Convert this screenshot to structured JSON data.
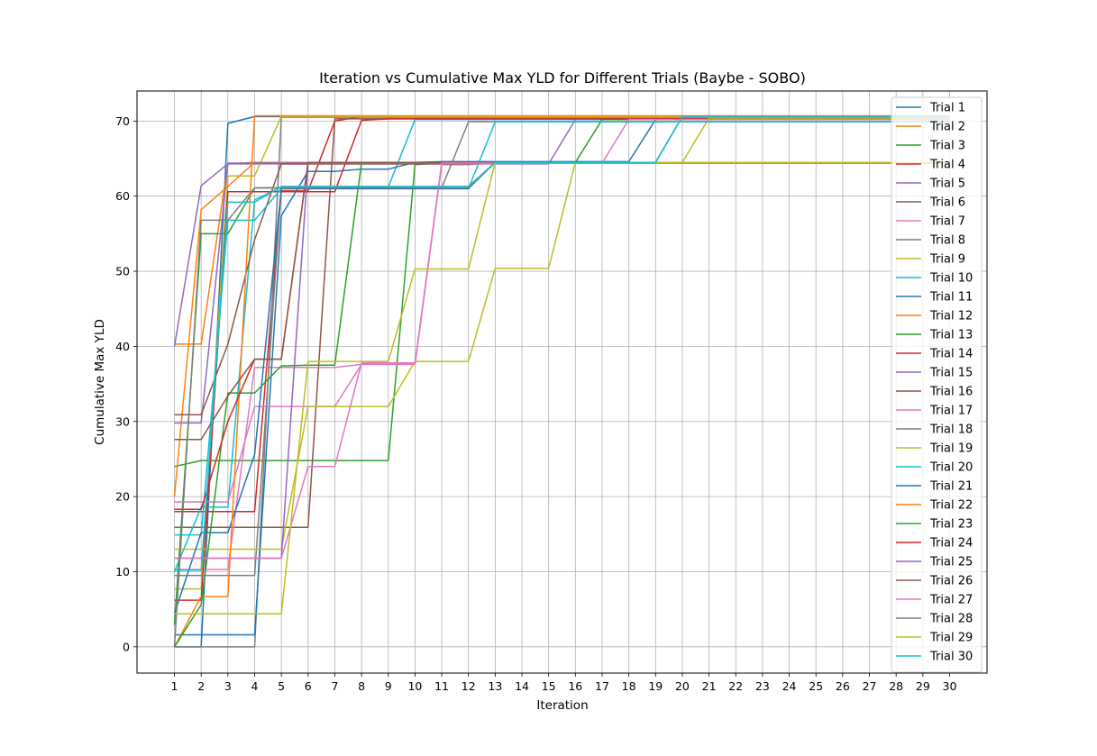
{
  "chart_data": {
    "type": "line",
    "title": "Iteration vs Cumulative Max YLD for Different Trials (Baybe - SOBO)",
    "xlabel": "Iteration",
    "ylabel": "Cumulative Max YLD",
    "xlim": [
      -0.4,
      31.4
    ],
    "ylim": [
      -3.5,
      74
    ],
    "xticks": [
      1,
      2,
      3,
      4,
      5,
      6,
      7,
      8,
      9,
      10,
      11,
      12,
      13,
      14,
      15,
      16,
      17,
      18,
      19,
      20,
      21,
      22,
      23,
      24,
      25,
      26,
      27,
      28,
      29,
      30
    ],
    "yticks": [
      0,
      10,
      20,
      30,
      40,
      50,
      60,
      70
    ],
    "grid": true,
    "legend_position": "upper right",
    "x": [
      1,
      2,
      3,
      4,
      5,
      6,
      7,
      8,
      9,
      10,
      11,
      12,
      13,
      14,
      15,
      16,
      17,
      18,
      19,
      20,
      21,
      22,
      23,
      24,
      25,
      26,
      27,
      28,
      29,
      30
    ],
    "series": [
      {
        "name": "Trial 1",
        "color": "#1f77b4",
        "values": [
          0,
          0,
          69.7,
          70.6,
          70.6,
          70.6,
          70.6,
          70.6,
          70.6,
          70.6,
          70.6,
          70.6,
          70.6,
          70.6,
          70.6,
          70.6,
          70.6,
          70.6,
          70.6,
          70.6,
          70.6,
          70.6,
          70.6,
          70.6,
          70.6,
          70.6,
          70.6,
          70.6,
          70.6,
          70.6
        ]
      },
      {
        "name": "Trial 2",
        "color": "#ff7f0e",
        "values": [
          40.3,
          40.3,
          64.3,
          64.5,
          64.5,
          64.5,
          64.5,
          64.5,
          64.5,
          64.5,
          64.5,
          64.5,
          64.5,
          64.5,
          64.5,
          64.5,
          64.5,
          64.5,
          64.5,
          64.5,
          64.5,
          64.5,
          64.5,
          64.5,
          64.5,
          64.5,
          64.5,
          64.5,
          64.5,
          64.5
        ]
      },
      {
        "name": "Trial 3",
        "color": "#2ca02c",
        "values": [
          24,
          24.8,
          24.8,
          24.8,
          24.8,
          24.8,
          24.8,
          24.8,
          24.8,
          64.2,
          64.4,
          64.5,
          64.5,
          64.5,
          64.5,
          64.5,
          64.5,
          64.5,
          64.5,
          64.5,
          64.5,
          64.5,
          64.5,
          64.5,
          64.5,
          64.5,
          64.5,
          64.5,
          64.5,
          64.5
        ]
      },
      {
        "name": "Trial 4",
        "color": "#d62728",
        "values": [
          18,
          18,
          18,
          18,
          60.7,
          60.7,
          70,
          70.6,
          70.6,
          70.6,
          70.6,
          70.6,
          70.6,
          70.6,
          70.6,
          70.6,
          70.6,
          70.6,
          70.6,
          70.6,
          70.6,
          70.6,
          70.6,
          70.6,
          70.6,
          70.6,
          70.6,
          70.6,
          70.6,
          70.6
        ]
      },
      {
        "name": "Trial 5",
        "color": "#9467bd",
        "values": [
          40,
          61.4,
          64.3,
          64.3,
          64.3,
          64.3,
          64.3,
          64.3,
          64.3,
          64.3,
          64.3,
          64.3,
          64.3,
          64.3,
          64.3,
          70.2,
          70.2,
          70.2,
          70.2,
          70.2,
          70.2,
          70.2,
          70.2,
          70.2,
          70.2,
          70.2,
          70.2,
          70.2,
          70.2,
          70.2
        ]
      },
      {
        "name": "Trial 6",
        "color": "#8c564b",
        "values": [
          15.9,
          15.9,
          15.9,
          15.9,
          15.9,
          15.9,
          70.3,
          70.3,
          70.3,
          70.3,
          70.3,
          70.3,
          70.3,
          70.3,
          70.3,
          70.3,
          70.3,
          70.3,
          70.3,
          70.3,
          70.3,
          70.3,
          70.3,
          70.3,
          70.3,
          70.3,
          70.3,
          70.3,
          70.3,
          70.3
        ]
      },
      {
        "name": "Trial 7",
        "color": "#e377c2",
        "values": [
          10.3,
          10.3,
          10.3,
          37.2,
          37.2,
          37.2,
          37.2,
          37.6,
          37.6,
          37.6,
          64.2,
          64.2,
          64.4,
          64.4,
          64.4,
          64.4,
          64.4,
          64.4,
          64.4,
          64.4,
          64.4,
          64.4,
          64.4,
          64.4,
          64.4,
          64.4,
          64.4,
          64.4,
          64.4,
          64.4
        ]
      },
      {
        "name": "Trial 8",
        "color": "#7f7f7f",
        "values": [
          0,
          0,
          0,
          0,
          70.5,
          70.5,
          70.5,
          70.5,
          70.5,
          70.5,
          70.5,
          70.5,
          70.5,
          70.5,
          70.5,
          70.5,
          70.5,
          70.5,
          70.5,
          70.5,
          70.5,
          70.5,
          70.5,
          70.5,
          70.5,
          70.5,
          70.5,
          70.5,
          70.5,
          70.5
        ]
      },
      {
        "name": "Trial 9",
        "color": "#bcbd22",
        "values": [
          7.7,
          7.7,
          62.7,
          62.7,
          70.6,
          70.6,
          70.6,
          70.6,
          70.6,
          70.6,
          70.6,
          70.6,
          70.6,
          70.6,
          70.6,
          70.6,
          70.6,
          70.6,
          70.6,
          70.6,
          70.6,
          70.6,
          70.6,
          70.6,
          70.6,
          70.6,
          70.6,
          70.6,
          70.6,
          70.6
        ]
      },
      {
        "name": "Trial 10",
        "color": "#17becf",
        "values": [
          10,
          18.6,
          18.6,
          59.5,
          61.2,
          61.2,
          61.2,
          61.2,
          61.2,
          70.2,
          70.2,
          70.2,
          70.2,
          70.2,
          70.2,
          70.2,
          70.2,
          70.2,
          70.2,
          70.2,
          70.2,
          70.2,
          70.2,
          70.2,
          70.2,
          70.2,
          70.2,
          70.2,
          70.2,
          70.2
        ]
      },
      {
        "name": "Trial 11",
        "color": "#1f77b4",
        "values": [
          1.6,
          1.6,
          1.6,
          1.6,
          57.4,
          63.3,
          63.3,
          63.6,
          63.6,
          64.5,
          64.6,
          64.6,
          64.6,
          64.6,
          64.6,
          64.6,
          64.6,
          64.6,
          70.2,
          70.2,
          70.2,
          70.2,
          70.2,
          70.2,
          70.2,
          70.2,
          70.2,
          70.2,
          70.2,
          70.2
        ]
      },
      {
        "name": "Trial 12",
        "color": "#ff7f0e",
        "values": [
          20,
          58.2,
          61.3,
          64.5,
          64.5,
          64.5,
          64.5,
          64.5,
          64.5,
          64.5,
          64.5,
          64.5,
          64.5,
          64.5,
          64.5,
          64.5,
          64.5,
          64.5,
          64.5,
          64.5,
          64.5,
          64.5,
          64.5,
          64.5,
          64.5,
          64.5,
          64.5,
          64.5,
          64.5,
          64.5
        ]
      },
      {
        "name": "Trial 13",
        "color": "#2ca02c",
        "values": [
          2.9,
          55,
          55,
          61.1,
          61.1,
          61.1,
          61.1,
          61.1,
          61.1,
          61.1,
          61.1,
          61.1,
          64.5,
          64.5,
          64.5,
          64.5,
          70.2,
          70.2,
          70.2,
          70.2,
          70.2,
          70.2,
          70.2,
          70.2,
          70.2,
          70.2,
          70.2,
          70.2,
          70.2,
          70.2
        ]
      },
      {
        "name": "Trial 14",
        "color": "#d62728",
        "values": [
          6.2,
          6.2,
          60.6,
          60.6,
          60.6,
          60.6,
          60.6,
          70.1,
          70.3,
          70.3,
          70.3,
          70.3,
          70.3,
          70.3,
          70.3,
          70.3,
          70.3,
          70.3,
          70.3,
          70.3,
          70.3,
          70.3,
          70.3,
          70.3,
          70.3,
          70.3,
          70.3,
          70.3,
          70.3,
          70.3
        ]
      },
      {
        "name": "Trial 15",
        "color": "#9467bd",
        "values": [
          29.8,
          29.8,
          64.4,
          64.4,
          64.4,
          64.4,
          64.4,
          64.4,
          64.4,
          64.4,
          64.4,
          64.4,
          64.4,
          64.4,
          64.4,
          64.4,
          64.4,
          64.4,
          64.4,
          64.4,
          64.4,
          64.4,
          64.4,
          64.4,
          64.4,
          64.4,
          64.4,
          64.4,
          64.4,
          64.4
        ]
      },
      {
        "name": "Trial 16",
        "color": "#8c564b",
        "values": [
          30.9,
          30.9,
          40.3,
          54.2,
          64.3,
          64.3,
          64.3,
          64.3,
          64.3,
          64.3,
          64.3,
          64.3,
          64.5,
          64.5,
          64.5,
          64.5,
          64.5,
          64.5,
          64.5,
          64.5,
          64.5,
          64.5,
          64.5,
          64.5,
          64.5,
          64.5,
          64.5,
          64.5,
          64.5,
          64.5
        ]
      },
      {
        "name": "Trial 17",
        "color": "#e377c2",
        "values": [
          19.3,
          19.3,
          19.3,
          32,
          32,
          32,
          32,
          37.6,
          37.6,
          37.6,
          64.4,
          64.4,
          64.4,
          64.4,
          64.4,
          64.4,
          64.4,
          70.2,
          70.2,
          70.2,
          70.2,
          70.2,
          70.2,
          70.2,
          70.2,
          70.2,
          70.2,
          70.2,
          70.2,
          70.2
        ]
      },
      {
        "name": "Trial 18",
        "color": "#7f7f7f",
        "values": [
          9.5,
          9.5,
          9.5,
          9.5,
          61.1,
          61.1,
          61.1,
          61.1,
          61.1,
          61.1,
          61.1,
          69.9,
          69.9,
          69.9,
          69.9,
          69.9,
          69.9,
          69.9,
          69.9,
          69.9,
          69.9,
          69.9,
          69.9,
          69.9,
          69.9,
          69.9,
          69.9,
          69.9,
          69.9,
          69.9
        ]
      },
      {
        "name": "Trial 19",
        "color": "#bcbd22",
        "values": [
          13,
          13,
          13,
          13,
          13,
          32,
          32,
          32,
          32,
          38,
          38,
          38,
          50.4,
          50.4,
          50.4,
          64.5,
          64.5,
          64.5,
          64.5,
          64.5,
          70.4,
          70.4,
          70.4,
          70.4,
          70.4,
          70.4,
          70.4,
          70.4,
          70.4,
          70.4
        ]
      },
      {
        "name": "Trial 20",
        "color": "#17becf",
        "values": [
          14.9,
          14.9,
          56.8,
          56.8,
          61,
          61,
          61,
          61,
          61,
          61,
          61,
          61,
          69.9,
          69.9,
          69.9,
          69.9,
          69.9,
          69.9,
          69.9,
          69.9,
          69.9,
          69.9,
          69.9,
          69.9,
          69.9,
          69.9,
          69.9,
          69.9,
          69.9,
          69.9
        ]
      },
      {
        "name": "Trial 21",
        "color": "#1f77b4",
        "values": [
          4.4,
          15.2,
          15.2,
          25.6,
          61,
          61,
          61,
          61,
          61,
          61,
          61,
          61,
          64.5,
          64.5,
          64.5,
          64.5,
          64.5,
          64.5,
          64.5,
          70.6,
          70.6,
          70.6,
          70.6,
          70.6,
          70.6,
          70.6,
          70.6,
          70.6,
          70.6,
          70.6
        ]
      },
      {
        "name": "Trial 22",
        "color": "#ff7f0e",
        "values": [
          0,
          6.7,
          6.7,
          70.7,
          70.7,
          70.7,
          70.7,
          70.7,
          70.7,
          70.7,
          70.7,
          70.7,
          70.7,
          70.7,
          70.7,
          70.7,
          70.7,
          70.7,
          70.7,
          70.7,
          70.7,
          70.7,
          70.7,
          70.7,
          70.7,
          70.7,
          70.7,
          70.7,
          70.7,
          70.7
        ]
      },
      {
        "name": "Trial 23",
        "color": "#2ca02c",
        "values": [
          0,
          5.6,
          33.8,
          33.8,
          37.4,
          37.5,
          37.5,
          64.5,
          64.5,
          64.5,
          64.5,
          64.5,
          64.5,
          64.5,
          64.5,
          64.5,
          64.5,
          64.5,
          64.5,
          64.5,
          64.5,
          64.5,
          64.5,
          64.5,
          64.5,
          64.5,
          64.5,
          64.5,
          64.5,
          64.5
        ]
      },
      {
        "name": "Trial 24",
        "color": "#d62728",
        "values": [
          18.3,
          18.3,
          30,
          38.3,
          38.3,
          64.5,
          64.5,
          64.5,
          64.5,
          64.5,
          64.5,
          64.5,
          64.5,
          64.5,
          64.5,
          64.5,
          64.5,
          64.5,
          64.5,
          64.5,
          64.5,
          64.5,
          64.5,
          64.5,
          64.5,
          64.5,
          64.5,
          64.5,
          64.5,
          64.5
        ]
      },
      {
        "name": "Trial 25",
        "color": "#9467bd",
        "values": [
          11.8,
          11.8,
          11.8,
          11.8,
          11.8,
          64.4,
          64.4,
          64.4,
          64.4,
          64.4,
          64.4,
          64.4,
          64.4,
          64.4,
          64.4,
          64.4,
          64.4,
          64.4,
          64.4,
          64.4,
          64.4,
          64.4,
          64.4,
          64.4,
          64.4,
          64.4,
          64.4,
          64.4,
          64.4,
          64.4
        ]
      },
      {
        "name": "Trial 26",
        "color": "#8c564b",
        "values": [
          27.6,
          27.6,
          33.4,
          38.3,
          38.3,
          64.5,
          64.5,
          64.5,
          64.5,
          64.5,
          64.5,
          64.5,
          64.5,
          64.5,
          64.5,
          64.5,
          64.5,
          64.5,
          64.5,
          64.5,
          64.5,
          64.5,
          64.5,
          64.5,
          64.5,
          64.5,
          64.5,
          64.5,
          64.5,
          64.5
        ]
      },
      {
        "name": "Trial 27",
        "color": "#e377c2",
        "values": [
          11.8,
          11.8,
          11.8,
          11.8,
          11.8,
          24,
          24,
          37.8,
          37.8,
          37.8,
          64.4,
          64.4,
          64.4,
          64.4,
          64.4,
          64.4,
          64.4,
          64.4,
          64.4,
          64.4,
          64.4,
          64.4,
          64.4,
          64.4,
          64.4,
          64.4,
          64.4,
          64.4,
          64.4,
          64.4
        ]
      },
      {
        "name": "Trial 28",
        "color": "#7f7f7f",
        "values": [
          0,
          56.8,
          56.8,
          61.1,
          61.1,
          61.1,
          61.1,
          61.1,
          61.1,
          61.1,
          61.1,
          61.1,
          64.5,
          64.5,
          64.5,
          64.5,
          64.5,
          64.5,
          64.5,
          64.5,
          64.5,
          64.5,
          64.5,
          64.5,
          64.5,
          64.5,
          64.5,
          64.5,
          64.5,
          64.5
        ]
      },
      {
        "name": "Trial 29",
        "color": "#bcbd22",
        "values": [
          4.4,
          4.4,
          4.4,
          4.4,
          4.4,
          38,
          38,
          38,
          38,
          50.3,
          50.3,
          50.3,
          64.5,
          64.5,
          64.5,
          64.5,
          64.5,
          64.5,
          64.5,
          64.5,
          64.5,
          64.5,
          64.5,
          64.5,
          64.5,
          64.5,
          64.5,
          64.5,
          64.5,
          64.5
        ]
      },
      {
        "name": "Trial 30",
        "color": "#17becf",
        "values": [
          10.2,
          10.2,
          59.2,
          59.2,
          61.3,
          61.3,
          61.3,
          61.3,
          61.3,
          61.3,
          61.3,
          61.3,
          64.5,
          64.5,
          64.5,
          64.5,
          64.5,
          64.5,
          64.5,
          70.6,
          70.6,
          70.6,
          70.6,
          70.6,
          70.6,
          70.6,
          70.6,
          70.6,
          70.6,
          70.6
        ]
      }
    ]
  }
}
